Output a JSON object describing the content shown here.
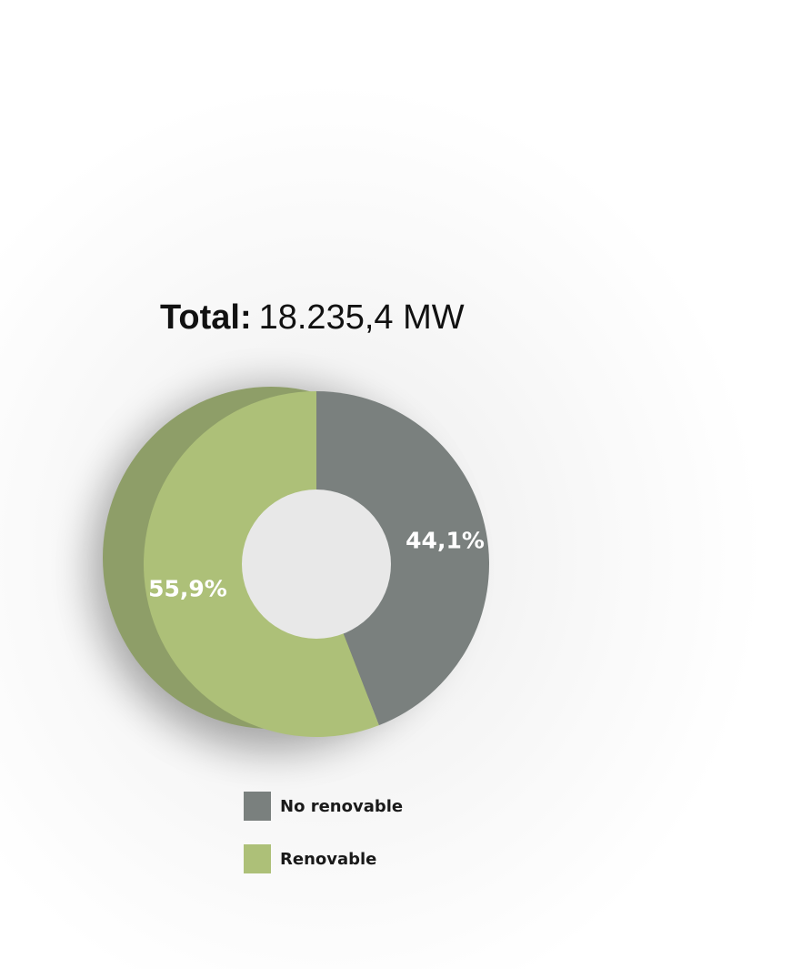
{
  "header": {
    "total_label": "Total:",
    "total_value": "18.235,4 MW"
  },
  "colors": {
    "no_renovable": "#7a807e",
    "renovable": "#adc078",
    "renovable_depth": "#8e9e68",
    "hole": "#e8e8e8"
  },
  "chart_data": {
    "type": "pie",
    "style": "donut",
    "title": "Total: 18.235,4 MW",
    "slices": [
      {
        "name": "No renovable",
        "value": 44.1,
        "label": "44,1%",
        "color": "#7a807e"
      },
      {
        "name": "Renovable",
        "value": 55.9,
        "label": "55,9%",
        "color": "#adc078"
      }
    ],
    "legend_position": "bottom"
  },
  "legend": {
    "items": [
      {
        "label": "No renovable",
        "color": "#7a807e"
      },
      {
        "label": "Renovable",
        "color": "#adc078"
      }
    ]
  }
}
